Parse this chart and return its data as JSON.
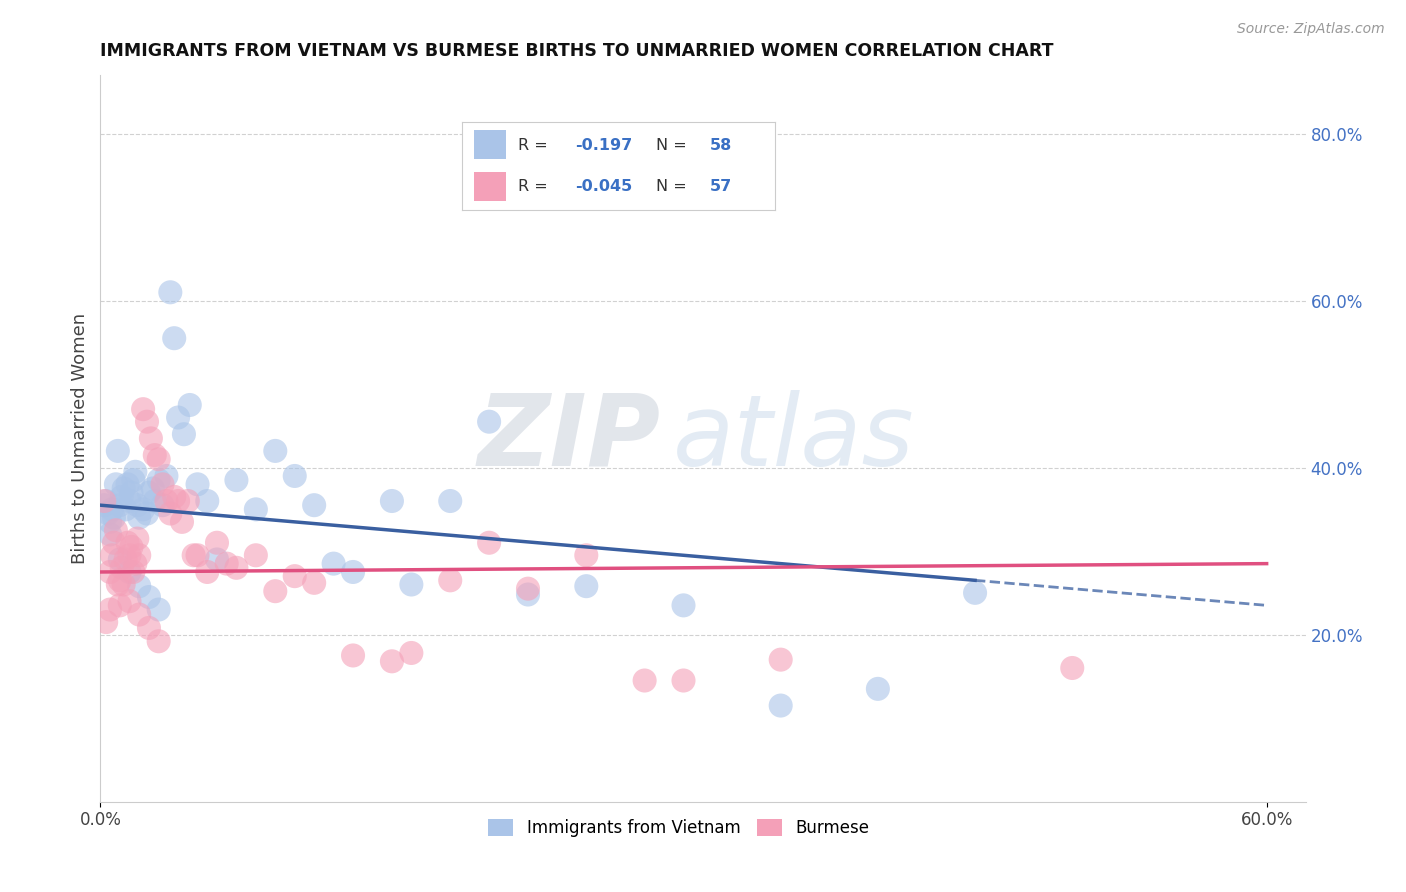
{
  "title": "IMMIGRANTS FROM VIETNAM VS BURMESE BIRTHS TO UNMARRIED WOMEN CORRELATION CHART",
  "source": "Source: ZipAtlas.com",
  "ylabel": "Births to Unmarried Women",
  "xlim": [
    0.0,
    0.62
  ],
  "ylim": [
    0.0,
    0.87
  ],
  "yticks_right": [
    0.2,
    0.4,
    0.6,
    0.8
  ],
  "yticklabels_right": [
    "20.0%",
    "40.0%",
    "60.0%",
    "80.0%"
  ],
  "grid_color": "#cccccc",
  "background_color": "#ffffff",
  "series1_color": "#aac4e8",
  "series2_color": "#f4a0b8",
  "series1_label": "Immigrants from Vietnam",
  "series2_label": "Burmese",
  "trend1_color": "#3a5fa0",
  "trend2_color": "#e05080",
  "trend1_start_y": 0.355,
  "trend1_end_y": 0.235,
  "trend1_solid_end_x": 0.45,
  "trend1_end_x": 0.6,
  "trend2_start_y": 0.275,
  "trend2_end_y": 0.285,
  "trend2_end_x": 0.6,
  "series1_x": [
    0.002,
    0.003,
    0.004,
    0.005,
    0.006,
    0.007,
    0.008,
    0.009,
    0.01,
    0.011,
    0.012,
    0.013,
    0.014,
    0.015,
    0.016,
    0.017,
    0.018,
    0.019,
    0.02,
    0.022,
    0.024,
    0.025,
    0.027,
    0.028,
    0.03,
    0.032,
    0.034,
    0.036,
    0.038,
    0.04,
    0.043,
    0.046,
    0.05,
    0.055,
    0.06,
    0.07,
    0.08,
    0.09,
    0.1,
    0.11,
    0.12,
    0.13,
    0.15,
    0.16,
    0.18,
    0.2,
    0.22,
    0.25,
    0.3,
    0.35,
    0.4,
    0.45,
    0.005,
    0.01,
    0.015,
    0.02,
    0.025,
    0.03
  ],
  "series1_y": [
    0.355,
    0.36,
    0.345,
    0.335,
    0.35,
    0.34,
    0.38,
    0.42,
    0.355,
    0.365,
    0.375,
    0.35,
    0.38,
    0.36,
    0.37,
    0.385,
    0.395,
    0.355,
    0.34,
    0.35,
    0.345,
    0.37,
    0.375,
    0.36,
    0.385,
    0.355,
    0.39,
    0.61,
    0.555,
    0.46,
    0.44,
    0.475,
    0.38,
    0.36,
    0.29,
    0.385,
    0.35,
    0.42,
    0.39,
    0.355,
    0.285,
    0.275,
    0.36,
    0.26,
    0.36,
    0.455,
    0.248,
    0.258,
    0.235,
    0.115,
    0.135,
    0.25,
    0.32,
    0.29,
    0.275,
    0.258,
    0.245,
    0.23
  ],
  "series2_x": [
    0.002,
    0.003,
    0.005,
    0.006,
    0.007,
    0.008,
    0.009,
    0.01,
    0.011,
    0.012,
    0.013,
    0.014,
    0.015,
    0.016,
    0.017,
    0.018,
    0.019,
    0.02,
    0.022,
    0.024,
    0.026,
    0.028,
    0.03,
    0.032,
    0.034,
    0.036,
    0.038,
    0.04,
    0.042,
    0.045,
    0.048,
    0.05,
    0.055,
    0.06,
    0.065,
    0.07,
    0.08,
    0.09,
    0.1,
    0.11,
    0.13,
    0.15,
    0.16,
    0.18,
    0.2,
    0.22,
    0.25,
    0.28,
    0.3,
    0.35,
    0.5,
    0.005,
    0.01,
    0.015,
    0.02,
    0.025,
    0.03
  ],
  "series2_y": [
    0.36,
    0.215,
    0.275,
    0.295,
    0.31,
    0.325,
    0.26,
    0.265,
    0.28,
    0.26,
    0.29,
    0.31,
    0.295,
    0.305,
    0.275,
    0.285,
    0.315,
    0.295,
    0.47,
    0.455,
    0.435,
    0.415,
    0.41,
    0.38,
    0.36,
    0.345,
    0.365,
    0.36,
    0.335,
    0.36,
    0.295,
    0.295,
    0.275,
    0.31,
    0.285,
    0.28,
    0.295,
    0.252,
    0.27,
    0.262,
    0.175,
    0.168,
    0.178,
    0.265,
    0.31,
    0.255,
    0.295,
    0.145,
    0.145,
    0.17,
    0.16,
    0.23,
    0.235,
    0.24,
    0.224,
    0.208,
    0.192
  ]
}
